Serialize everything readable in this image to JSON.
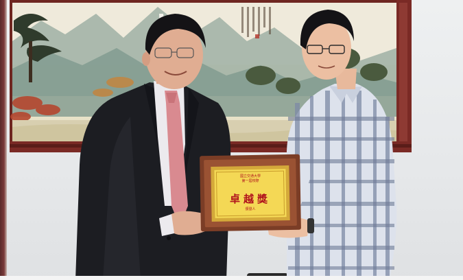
{
  "photo": {
    "description_colors": {
      "wall": "#e6e8ea",
      "frame": "#7a2a25",
      "suit": "#1c1d22",
      "tie": "#d98a90",
      "plaque_wood": "#8a4a30",
      "plaque_gold": "#f2d24a",
      "plaque_text": "#b0121c",
      "shirt_check": "#7e8aa6"
    }
  },
  "plaque": {
    "line1": "國立交通大學",
    "line2": "第一屆校際",
    "award": "卓越獎",
    "line3": "頒發人"
  }
}
